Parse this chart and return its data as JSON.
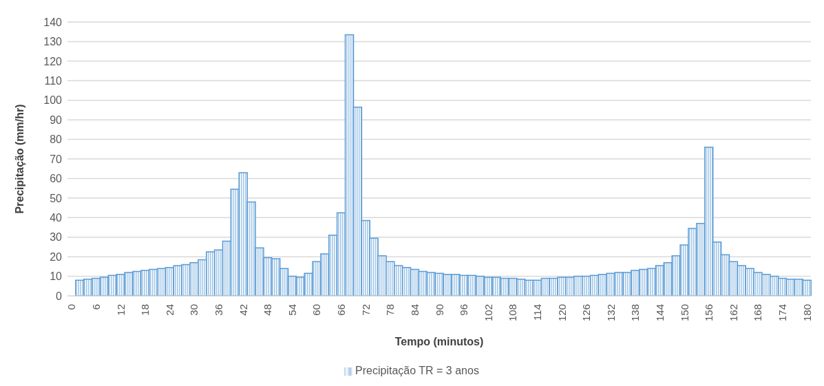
{
  "chart_data": {
    "type": "bar",
    "xlabel": "Tempo (minutos)",
    "ylabel": "Precipitação (mm/hr)",
    "categories": [
      "0",
      null,
      null,
      "6",
      null,
      null,
      "12",
      null,
      null,
      "18",
      null,
      null,
      "24",
      null,
      null,
      "30",
      null,
      null,
      "36",
      null,
      null,
      "42",
      null,
      null,
      "48",
      null,
      null,
      "54",
      null,
      null,
      "60",
      null,
      null,
      "66",
      null,
      null,
      "72",
      null,
      null,
      "78",
      null,
      null,
      "84",
      null,
      null,
      "90",
      null,
      null,
      "96",
      null,
      null,
      "102",
      null,
      null,
      "108",
      null,
      null,
      "114",
      null,
      null,
      "120",
      null,
      null,
      "126",
      null,
      null,
      "132",
      null,
      null,
      "138",
      null,
      null,
      "144",
      null,
      null,
      "150",
      null,
      null,
      "156",
      null,
      null,
      "162",
      null,
      null,
      "168",
      null,
      null,
      "174",
      null,
      null,
      "180"
    ],
    "series": [
      {
        "name": "Precipitação TR = 3 anos",
        "color": "#5b9bd5",
        "values": [
          0,
          8,
          8.5,
          9,
          9.5,
          10.5,
          11,
          12,
          12.5,
          13,
          13.5,
          14,
          14.5,
          15.5,
          16,
          17,
          18.5,
          22.5,
          23.5,
          28,
          54.5,
          63,
          48,
          24.5,
          19.5,
          19,
          14,
          10,
          9.5,
          11.5,
          17.5,
          21.5,
          31,
          42.5,
          133.5,
          96.5,
          38.5,
          29.5,
          20.5,
          17.5,
          15.5,
          14.5,
          13.5,
          12.5,
          12,
          11.5,
          11,
          11,
          10.5,
          10.5,
          10,
          9.5,
          9.5,
          9,
          9,
          8.5,
          8,
          8,
          9,
          9,
          9.5,
          9.5,
          10,
          10,
          10.5,
          11,
          11.5,
          12,
          12,
          13,
          13.5,
          14,
          15.5,
          17,
          20.5,
          26,
          34.5,
          37,
          76,
          27.5,
          21,
          17.5,
          15.5,
          14,
          12,
          11,
          10,
          9,
          8.5,
          8.5,
          8
        ]
      }
    ],
    "ylim": [
      0,
      140
    ],
    "yticks": [
      0,
      10,
      20,
      30,
      40,
      50,
      60,
      70,
      80,
      90,
      100,
      110,
      120,
      130,
      140
    ],
    "grid": "y",
    "legend": "bottom"
  }
}
